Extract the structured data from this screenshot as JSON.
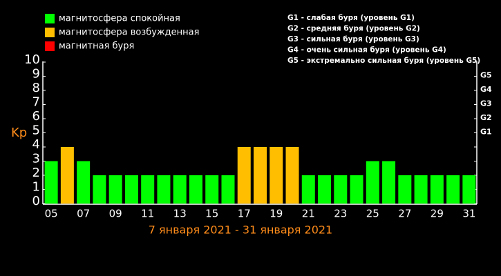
{
  "chart_data": {
    "type": "bar",
    "legend": [
      {
        "label": "магнитосфера спокойная",
        "color": "#00ff00"
      },
      {
        "label": "магнитосфера возбужденная",
        "color": "#ffbf00"
      },
      {
        "label": "магнитная буря",
        "color": "#ff0000"
      }
    ],
    "annotations": [
      "G1 - слабая буря (уровень G1)",
      "G2 - средняя буря (уровень G2)",
      "G3 - сильная буря (уровень G3)",
      "G4 - очень сильная буря (уровень G4)",
      "G5 - экстремально сильная буря (уровень G5)"
    ],
    "y_label": "Kp",
    "x_label": "7 января 2021 - 31 января 2021",
    "categories": [
      "05",
      null,
      "07",
      null,
      "09",
      null,
      "11",
      null,
      "13",
      null,
      "15",
      null,
      "17",
      null,
      "19",
      null,
      "21",
      null,
      "23",
      null,
      "25",
      null,
      "27",
      null,
      "29",
      null,
      "31"
    ],
    "values": [
      3,
      4,
      3,
      2,
      2,
      2,
      2,
      2,
      2,
      2,
      2,
      2,
      4,
      4,
      4,
      4,
      2,
      2,
      2,
      2,
      3,
      3,
      2,
      2,
      2,
      2,
      2
    ],
    "colors": [
      "#00ff00",
      "#ffbf00",
      "#00ff00",
      "#00ff00",
      "#00ff00",
      "#00ff00",
      "#00ff00",
      "#00ff00",
      "#00ff00",
      "#00ff00",
      "#00ff00",
      "#00ff00",
      "#ffbf00",
      "#ffbf00",
      "#ffbf00",
      "#ffbf00",
      "#00ff00",
      "#00ff00",
      "#00ff00",
      "#00ff00",
      "#00ff00",
      "#00ff00",
      "#00ff00",
      "#00ff00",
      "#00ff00",
      "#00ff00",
      "#00ff00"
    ],
    "ylim": [
      0,
      10
    ],
    "yticks": [
      0,
      1,
      2,
      3,
      4,
      5,
      6,
      7,
      8,
      9,
      10
    ],
    "y2lim": [
      0,
      10
    ],
    "y2ticks": [
      {
        "value": 5,
        "label": "G1"
      },
      {
        "value": 6,
        "label": "G2"
      },
      {
        "value": 7,
        "label": "G3"
      },
      {
        "value": 8,
        "label": "G4"
      },
      {
        "value": 9,
        "label": "G5"
      }
    ]
  }
}
